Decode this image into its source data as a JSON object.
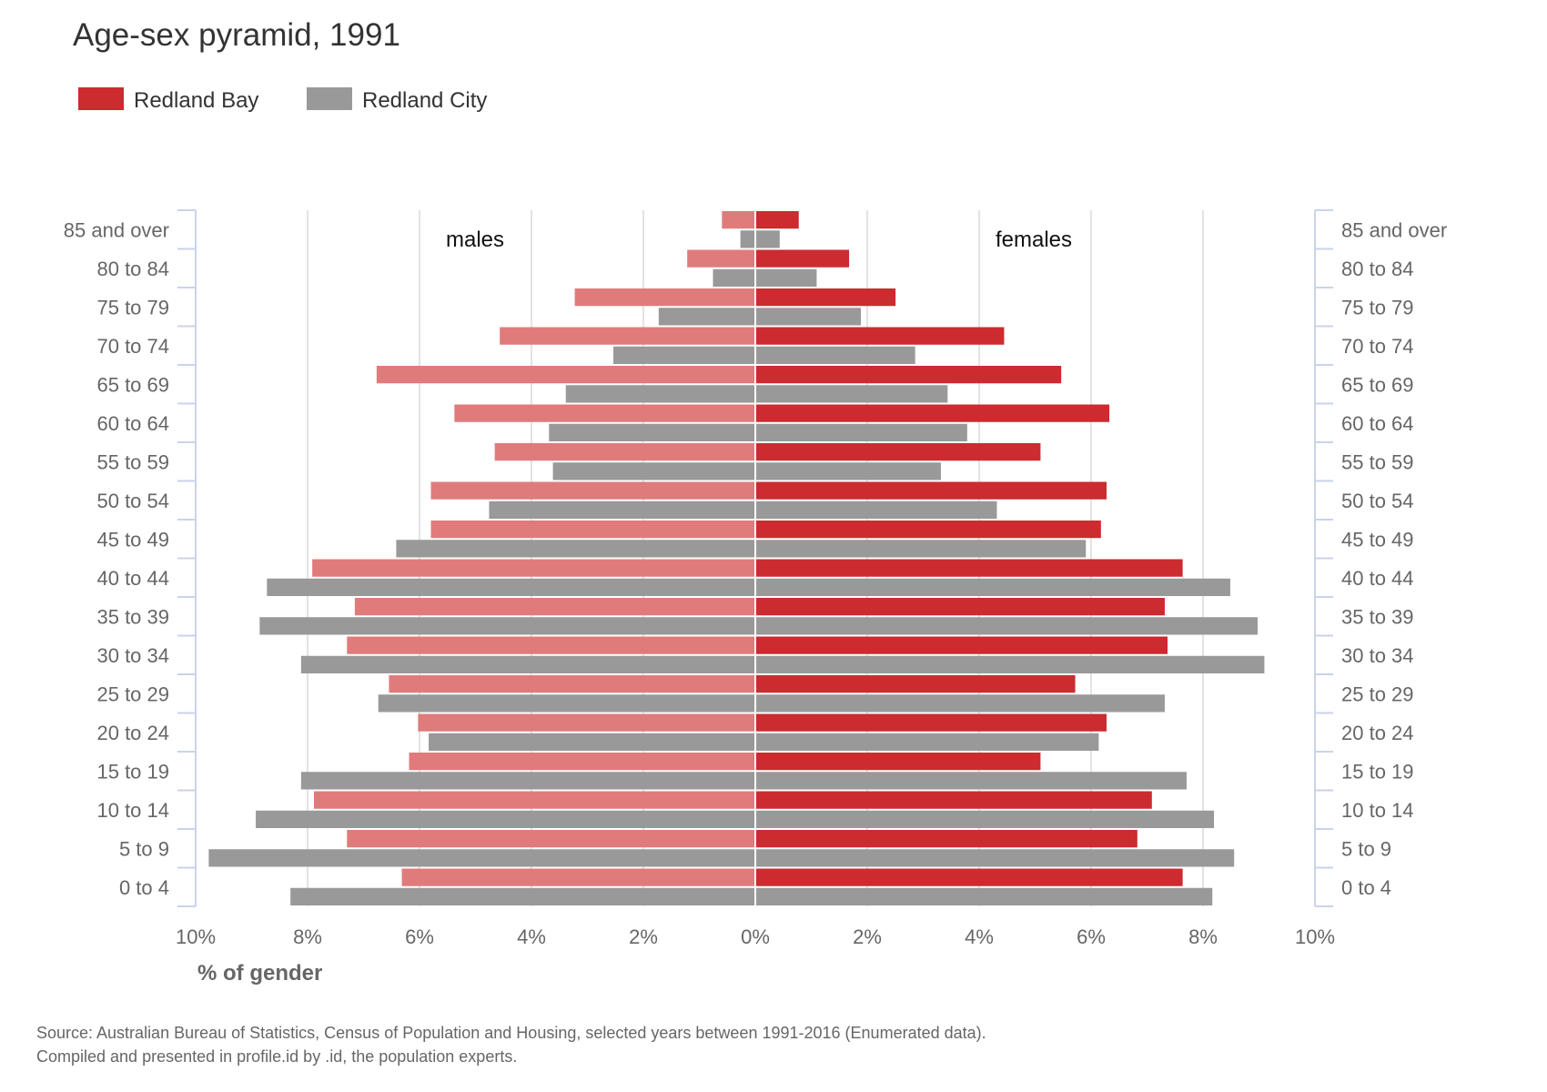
{
  "chart_data": {
    "type": "bar",
    "orientation": "horizontal-pyramid",
    "title": "Age-sex pyramid, 1991",
    "xlabel": "% of gender",
    "xlim": [
      -10,
      10
    ],
    "x_ticks": [
      "10%",
      "8%",
      "6%",
      "4%",
      "2%",
      "0%",
      "2%",
      "4%",
      "6%",
      "8%",
      "10%"
    ],
    "side_labels": {
      "left": "males",
      "right": "females"
    },
    "grid": true,
    "legend_position": "top-left",
    "categories": [
      "85 and over",
      "80 to 84",
      "75 to 79",
      "70 to 74",
      "65 to 69",
      "60 to 64",
      "55 to 59",
      "50 to 54",
      "45 to 49",
      "40 to 44",
      "35 to 39",
      "30 to 34",
      "25 to 29",
      "20 to 24",
      "15 to 19",
      "10 to 14",
      "5 to 9",
      "0 to 4"
    ],
    "series": [
      {
        "name": "Redland Bay",
        "color": "#cc2b30",
        "male_color": "#e07b7b",
        "males": [
          0.58,
          1.2,
          3.21,
          4.55,
          6.75,
          5.36,
          4.64,
          5.78,
          5.78,
          7.9,
          7.14,
          7.28,
          6.53,
          6.01,
          6.17,
          7.87,
          7.28,
          6.3
        ],
        "females": [
          0.76,
          1.66,
          2.49,
          4.43,
          5.45,
          6.31,
          5.08,
          6.26,
          6.16,
          7.62,
          7.3,
          7.35,
          5.7,
          6.26,
          5.08,
          7.07,
          6.81,
          7.62
        ]
      },
      {
        "name": "Redland City",
        "color": "#999999",
        "male_color": "#999999",
        "males": [
          0.25,
          0.74,
          1.71,
          2.52,
          3.37,
          3.67,
          3.6,
          4.74,
          6.4,
          8.71,
          8.84,
          8.1,
          6.72,
          5.82,
          8.1,
          8.91,
          9.75,
          8.29
        ],
        "females": [
          0.42,
          1.08,
          1.87,
          2.84,
          3.42,
          3.77,
          3.3,
          4.3,
          5.89,
          8.47,
          8.96,
          9.08,
          7.3,
          6.12,
          7.69,
          8.18,
          8.54,
          8.15
        ]
      }
    ]
  },
  "footer": {
    "source": "Source: Australian Bureau of Statistics, Census of Population and Housing, selected years between 1991-2016 (Enumerated data).",
    "compiled": "Compiled and presented in profile.id by .id, the population experts."
  }
}
